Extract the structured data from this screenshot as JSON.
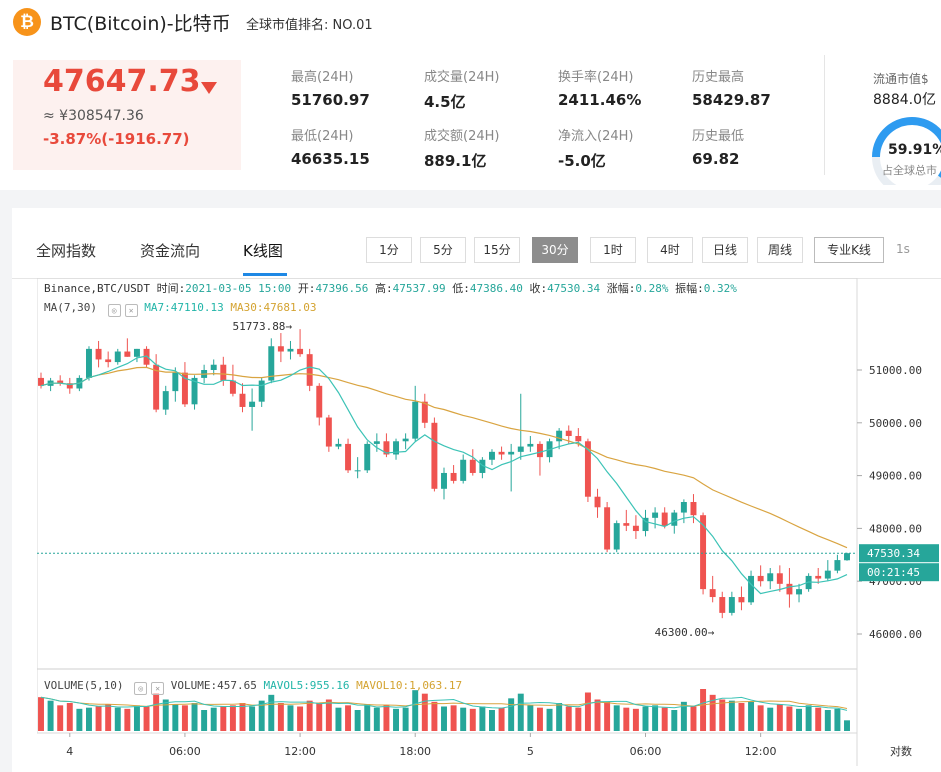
{
  "header": {
    "coin_symbol": "₿",
    "title": "BTC(Bitcoin)-比特币",
    "rank_label": "全球市值排名: NO.01"
  },
  "price": {
    "last": "47647.73",
    "cny": "≈ ¥308547.36",
    "change": "-3.87%(-1916.77)"
  },
  "stats": [
    {
      "label": "最高(24H)",
      "value": "51760.97"
    },
    {
      "label": "成交量(24H)",
      "value": "4.5亿"
    },
    {
      "label": "换手率(24H)",
      "value": "2411.46%"
    },
    {
      "label": "历史最高",
      "value": "58429.87"
    },
    {
      "label": "最低(24H)",
      "value": "46635.15"
    },
    {
      "label": "成交额(24H)",
      "value": "889.1亿"
    },
    {
      "label": "净流入(24H)",
      "value": "-5.0亿"
    },
    {
      "label": "历史最低",
      "value": "69.82"
    }
  ],
  "circulation": {
    "label": "流通市值$",
    "value": "8884.0亿",
    "percent": "59.91%",
    "percent_value": 59.91,
    "sub": "占全球总市"
  },
  "tabs": [
    "全网指数",
    "资金流向",
    "K线图"
  ],
  "intervals": [
    "1分",
    "5分",
    "15分",
    "30分",
    "1时",
    "4时",
    "日线",
    "周线"
  ],
  "active_interval": "30分",
  "pro_label": "专业K线",
  "refresh_label": "1s",
  "chart_info": {
    "exchange": "Binance,BTC/USDT",
    "time_label": "时间:",
    "time": "2021-03-05 15:00",
    "open_label": "开:",
    "open": "47396.56",
    "high_label": "高:",
    "high": "47537.99",
    "low_label": "低:",
    "low": "47386.40",
    "close_label": "收:",
    "close": "47530.34",
    "chg_label": "涨幅:",
    "chg": "0.28%",
    "amp_label": "振幅:",
    "amp": "0.32%",
    "ma_label": "MA(7,30)",
    "ma7": "MA7:47110.13",
    "ma30": "MA30:47681.03",
    "vol_label": "VOLUME(5,10)",
    "vol": "VOLUME:457.65",
    "mavol5": "MAVOL5:955.16",
    "mavol10": "MAVOL10:1,063.17",
    "high_marker": "51773.88",
    "low_marker": "46300.00",
    "last_price_tag": "47530.34",
    "countdown_tag": "00:21:45",
    "log_toggle": "对数"
  },
  "chart_data": {
    "type": "candlestick",
    "price_axis_ticks": [
      51000,
      50000,
      49000,
      48000,
      47000,
      46000
    ],
    "price_axis_labels": [
      "51000.00",
      "50000.00",
      "49000.00",
      "48000.00",
      "47000.00",
      "46000.00"
    ],
    "ylim": [
      45500,
      52000
    ],
    "x_ticks": [
      {
        "i": 3,
        "label": "4"
      },
      {
        "i": 15,
        "label": "06:00"
      },
      {
        "i": 27,
        "label": "12:00"
      },
      {
        "i": 39,
        "label": "18:00"
      },
      {
        "i": 51,
        "label": "5"
      },
      {
        "i": 63,
        "label": "06:00"
      },
      {
        "i": 75,
        "label": "12:00"
      }
    ],
    "candles": [
      [
        50850,
        50950,
        50650,
        50700
      ],
      [
        50700,
        50850,
        50600,
        50800
      ],
      [
        50800,
        50900,
        50700,
        50750
      ],
      [
        50750,
        50850,
        50550,
        50650
      ],
      [
        50650,
        50900,
        50600,
        50850
      ],
      [
        50850,
        51450,
        50800,
        51400
      ],
      [
        51400,
        51550,
        51050,
        51200
      ],
      [
        51200,
        51350,
        51050,
        51150
      ],
      [
        51150,
        51400,
        51100,
        51350
      ],
      [
        51350,
        51600,
        51250,
        51250
      ],
      [
        51250,
        51400,
        51150,
        51400
      ],
      [
        51400,
        51450,
        51050,
        51100
      ],
      [
        51100,
        51300,
        50200,
        50250
      ],
      [
        50250,
        50700,
        50150,
        50600
      ],
      [
        50600,
        51050,
        50400,
        50950
      ],
      [
        50950,
        51150,
        50300,
        50350
      ],
      [
        50350,
        50900,
        50250,
        50850
      ],
      [
        50850,
        51100,
        50750,
        51000
      ],
      [
        51000,
        51200,
        50900,
        51100
      ],
      [
        51100,
        51250,
        50700,
        50800
      ],
      [
        50800,
        51100,
        50500,
        50550
      ],
      [
        50550,
        50750,
        50200,
        50300
      ],
      [
        50300,
        50650,
        49850,
        50400
      ],
      [
        50400,
        50850,
        50300,
        50800
      ],
      [
        50800,
        51600,
        50750,
        51450
      ],
      [
        51450,
        51700,
        51150,
        51350
      ],
      [
        51350,
        51550,
        51200,
        51400
      ],
      [
        51400,
        51774,
        51250,
        51300
      ],
      [
        51300,
        51400,
        50600,
        50700
      ],
      [
        50700,
        50750,
        49950,
        50100
      ],
      [
        50100,
        50150,
        49450,
        49550
      ],
      [
        49550,
        49700,
        49500,
        49600
      ],
      [
        49600,
        49700,
        49050,
        49100
      ],
      [
        49100,
        49350,
        48950,
        49100
      ],
      [
        49100,
        49650,
        49050,
        49600
      ],
      [
        49600,
        49800,
        49450,
        49650
      ],
      [
        49650,
        49800,
        49350,
        49400
      ],
      [
        49400,
        49700,
        49300,
        49650
      ],
      [
        49650,
        49800,
        49500,
        49700
      ],
      [
        49700,
        50700,
        49650,
        50400
      ],
      [
        50400,
        50550,
        49900,
        50000
      ],
      [
        50000,
        50100,
        48700,
        48750
      ],
      [
        48750,
        49150,
        48550,
        49050
      ],
      [
        49050,
        49200,
        48850,
        48900
      ],
      [
        48900,
        49400,
        48850,
        49300
      ],
      [
        49300,
        49500,
        49000,
        49050
      ],
      [
        49050,
        49350,
        48950,
        49300
      ],
      [
        49300,
        49500,
        49200,
        49450
      ],
      [
        49450,
        49550,
        49300,
        49400
      ],
      [
        49400,
        49600,
        48700,
        49450
      ],
      [
        49450,
        50550,
        49300,
        49550
      ],
      [
        49550,
        49750,
        49450,
        49600
      ],
      [
        49600,
        49650,
        49000,
        49350
      ],
      [
        49350,
        49700,
        49250,
        49650
      ],
      [
        49650,
        49900,
        49500,
        49850
      ],
      [
        49850,
        49950,
        49600,
        49750
      ],
      [
        49750,
        49900,
        49550,
        49650
      ],
      [
        49650,
        49700,
        48500,
        48600
      ],
      [
        48600,
        48750,
        48200,
        48400
      ],
      [
        48400,
        48500,
        47550,
        47600
      ],
      [
        47600,
        48150,
        47550,
        48100
      ],
      [
        48100,
        48350,
        47950,
        48050
      ],
      [
        48050,
        48250,
        47800,
        47950
      ],
      [
        47950,
        48350,
        47850,
        48200
      ],
      [
        48200,
        48400,
        48000,
        48300
      ],
      [
        48300,
        48400,
        48000,
        48050
      ],
      [
        48050,
        48350,
        47900,
        48300
      ],
      [
        48300,
        48550,
        48100,
        48500
      ],
      [
        48500,
        48650,
        48100,
        48250
      ],
      [
        48250,
        48300,
        46750,
        46850
      ],
      [
        46850,
        47100,
        46600,
        46700
      ],
      [
        46700,
        46800,
        46300,
        46400
      ],
      [
        46400,
        46800,
        46350,
        46700
      ],
      [
        46700,
        46900,
        46450,
        46600
      ],
      [
        46600,
        47200,
        46550,
        47100
      ],
      [
        47100,
        47300,
        46900,
        47000
      ],
      [
        47000,
        47250,
        46850,
        47150
      ],
      [
        47150,
        47300,
        46800,
        46950
      ],
      [
        46950,
        47250,
        46500,
        46750
      ],
      [
        46750,
        46950,
        46600,
        46850
      ],
      [
        46850,
        47150,
        46800,
        47100
      ],
      [
        47100,
        47250,
        46950,
        47050
      ],
      [
        47050,
        47400,
        47000,
        47200
      ],
      [
        47200,
        47500,
        47150,
        47400
      ],
      [
        47396.56,
        47537.99,
        47386.4,
        47530.34
      ]
    ],
    "volumes": [
      1450,
      1300,
      1100,
      1200,
      950,
      1000,
      1050,
      1150,
      1000,
      950,
      1100,
      1050,
      1600,
      1350,
      1150,
      1100,
      1200,
      900,
      1000,
      1050,
      1100,
      1200,
      1050,
      1300,
      1550,
      1200,
      1100,
      1050,
      1300,
      1200,
      1350,
      1000,
      1100,
      900,
      1150,
      1000,
      1100,
      950,
      1000,
      1750,
      1600,
      1250,
      1050,
      1100,
      1000,
      950,
      1050,
      900,
      1000,
      1400,
      1600,
      1100,
      1000,
      950,
      1200,
      1050,
      1000,
      1650,
      1350,
      1250,
      1100,
      1000,
      950,
      1050,
      1100,
      1000,
      900,
      1250,
      1050,
      1800,
      1550,
      1350,
      1300,
      1200,
      1250,
      1100,
      1000,
      1150,
      1050,
      950,
      1100,
      1000,
      900,
      950,
      457.65
    ]
  }
}
